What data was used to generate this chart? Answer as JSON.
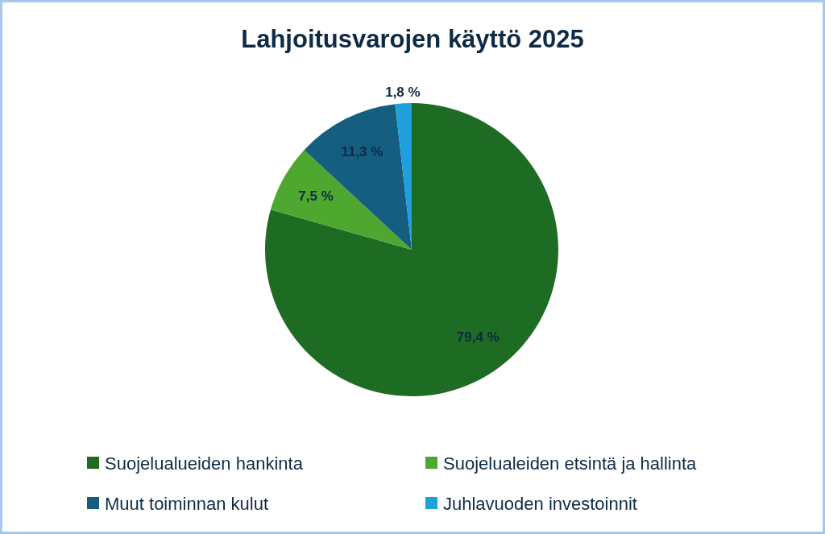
{
  "chart_data": {
    "type": "pie",
    "title": "Lahjoitusvarojen käyttö 2025",
    "categories": [
      "Suojelualueiden hankinta",
      "Suojelualeiden etsintä ja hallinta",
      "Muut toiminnan kulut",
      "Juhlavuoden investoinnit"
    ],
    "values": [
      79.4,
      7.5,
      11.3,
      1.8
    ],
    "colors": [
      "#1e6b24",
      "#4ea72e",
      "#165e80",
      "#1fa0dc"
    ],
    "value_labels": [
      "79,4 %",
      "7,5 %",
      "11,3 %",
      "1,8 %"
    ],
    "legend": "bottom"
  }
}
